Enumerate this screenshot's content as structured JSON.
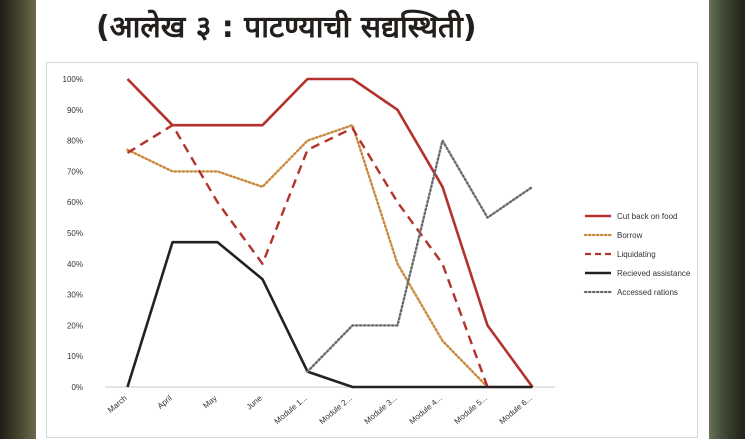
{
  "slide_title": "(आलेख ३ : पाटण्याची सद्यस्थिती)",
  "chart_data": {
    "type": "line",
    "categories": [
      "March",
      "April",
      "May",
      "June",
      "Module 1...",
      "Module 2...",
      "Module 3...",
      "Module 4...",
      "Module 5...",
      "Module 6..."
    ],
    "yticks": [
      "0%",
      "10%",
      "20%",
      "30%",
      "40%",
      "50%",
      "60%",
      "70%",
      "80%",
      "90%",
      "100%"
    ],
    "ylim": [
      0,
      100
    ],
    "grid": false,
    "legend_position": "right",
    "series": [
      {
        "name": "Cut back on food",
        "color": "#b3322b",
        "style": "solid",
        "values": [
          100,
          85,
          85,
          85,
          100,
          100,
          90,
          65,
          20,
          0
        ]
      },
      {
        "name": "Borrow",
        "color": "#c98a3c",
        "style": "dotted",
        "values": [
          77,
          70,
          70,
          65,
          80,
          85,
          40,
          15,
          0,
          0
        ]
      },
      {
        "name": "Liquidating",
        "color": "#b3322b",
        "style": "dashed",
        "values": [
          76,
          85,
          60,
          40,
          77,
          84,
          60,
          40,
          0,
          null
        ]
      },
      {
        "name": "Recieved assistance",
        "color": "#222222",
        "style": "solid",
        "values": [
          0,
          47,
          47,
          35,
          5,
          0,
          0,
          0,
          0,
          0
        ]
      },
      {
        "name": "Accessed rations",
        "color": "#6c6c6c",
        "style": "dotted",
        "values": [
          null,
          null,
          null,
          null,
          5,
          20,
          20,
          80,
          55,
          65
        ]
      }
    ]
  }
}
